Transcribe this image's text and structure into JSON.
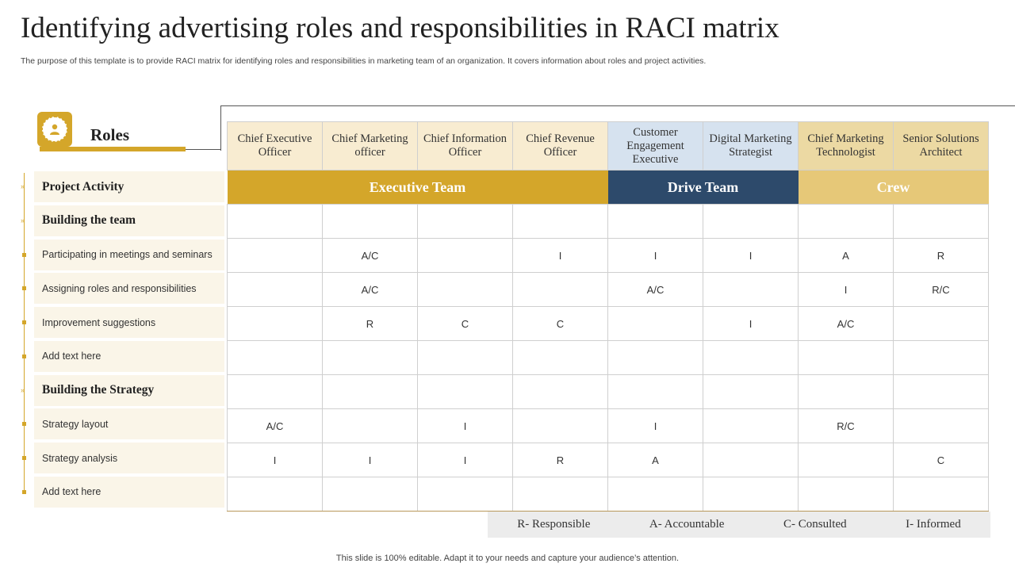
{
  "title": "Identifying advertising roles and responsibilities in RACI matrix",
  "subtitle": "The purpose of this template is to provide RACI matrix for identifying roles and responsibilities in marketing team of an organization. It covers information about roles and project activities.",
  "roles_label": "Roles",
  "roles_icon": "person-icon",
  "accent_color": "#d4a62a",
  "columns": [
    "Chief Executive Officer",
    "Chief Marketing officer",
    "Chief Information Officer",
    "Chief Revenue Officer",
    "Customer Engagement Executive",
    "Digital Marketing Strategist",
    "Chief Marketing Technologist",
    "Senior Solutions Architect"
  ],
  "groups": [
    {
      "name": "Executive Team",
      "color": "#d4a62a"
    },
    {
      "name": "Drive Team",
      "color": "#2d4a6b"
    },
    {
      "name": "Crew",
      "color": "#e6c878"
    }
  ],
  "rows": [
    {
      "label": "Project Activity",
      "heading": true,
      "cells": []
    },
    {
      "label": "Building the team",
      "heading": true,
      "cells": [
        "",
        "",
        "",
        "",
        "",
        "",
        "",
        ""
      ]
    },
    {
      "label": "Participating in meetings and seminars",
      "heading": false,
      "cells": [
        "",
        "A/C",
        "",
        "I",
        "I",
        "I",
        "A",
        "R"
      ]
    },
    {
      "label": "Assigning roles and responsibilities",
      "heading": false,
      "cells": [
        "",
        "A/C",
        "",
        "",
        "A/C",
        "",
        "I",
        "R/C"
      ]
    },
    {
      "label": "Improvement  suggestions",
      "heading": false,
      "cells": [
        "",
        "R",
        "C",
        "C",
        "",
        "I",
        "A/C",
        ""
      ]
    },
    {
      "label": "Add text here",
      "heading": false,
      "cells": [
        "",
        "",
        "",
        "",
        "",
        "",
        "",
        ""
      ]
    },
    {
      "label": "Building the Strategy",
      "heading": true,
      "cells": [
        "",
        "",
        "",
        "",
        "",
        "",
        "",
        ""
      ]
    },
    {
      "label": "Strategy layout",
      "heading": false,
      "cells": [
        "A/C",
        "",
        "I",
        "",
        "I",
        "",
        "R/C",
        ""
      ]
    },
    {
      "label": "Strategy analysis",
      "heading": false,
      "cells": [
        "I",
        "I",
        "I",
        "R",
        "A",
        "",
        "",
        "C"
      ]
    },
    {
      "label": "Add text here",
      "heading": false,
      "cells": [
        "",
        "",
        "",
        "",
        "",
        "",
        "",
        ""
      ]
    }
  ],
  "legend": [
    "R- Responsible",
    "A- Accountable",
    "C- Consulted",
    "I- Informed"
  ],
  "footer": "This slide is 100% editable. Adapt it to your needs and capture your audience’s attention."
}
